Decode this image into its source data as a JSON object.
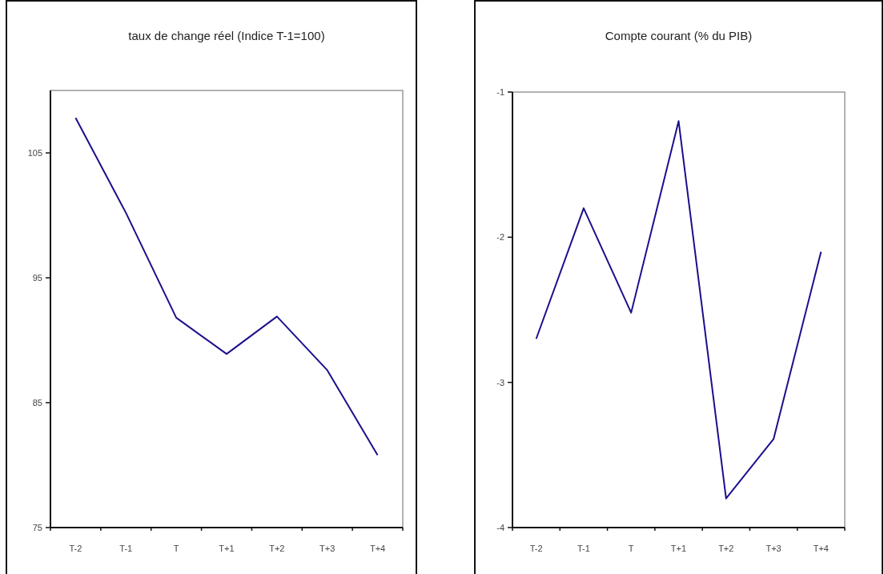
{
  "chart_data": [
    {
      "type": "line",
      "title": "taux de change réel (Indice T-1=100)",
      "categories": [
        "T-2",
        "T-1",
        "T",
        "T+1",
        "T+2",
        "T+3",
        "T+4"
      ],
      "series": [
        {
          "color": "#1a0f8c",
          "values": [
            107.8,
            100.2,
            91.8,
            88.9,
            91.9,
            87.6,
            80.8
          ]
        }
      ],
      "ylim": [
        75,
        110
      ],
      "yticks": [
        75,
        85,
        95,
        105
      ],
      "grid": false,
      "marker": "none",
      "line_style": "solid"
    },
    {
      "type": "line",
      "title": "Compte courant (% du PIB)",
      "categories": [
        "T-2",
        "T-1",
        "T",
        "T+1",
        "T+2",
        "T+3",
        "T+4"
      ],
      "series": [
        {
          "color": "#1a0f8c",
          "values": [
            -2.7,
            -1.8,
            -2.52,
            -1.2,
            -3.8,
            -3.39,
            -2.1
          ]
        }
      ],
      "ylim": [
        -4,
        -1
      ],
      "yticks": [
        -4,
        -3,
        -2,
        -1
      ],
      "grid": false,
      "marker": "none",
      "line_style": "solid"
    }
  ]
}
